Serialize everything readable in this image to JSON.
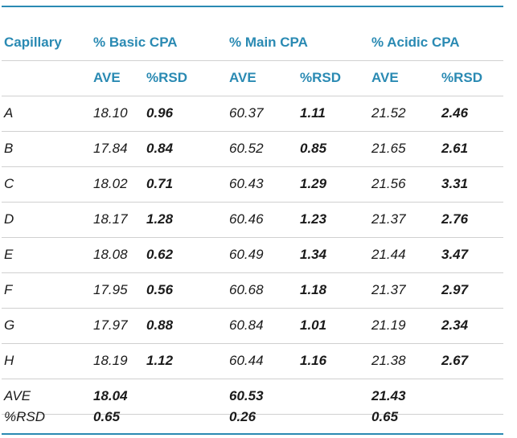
{
  "header": {
    "capillary": "Capillary",
    "basic": "% Basic CPA",
    "main": "% Main CPA",
    "acidic": "% Acidic CPA"
  },
  "subheader": {
    "ave": "AVE",
    "rsd": "%RSD"
  },
  "rows": [
    {
      "label": "A",
      "basic_ave": "18.10",
      "basic_rsd": "0.96",
      "main_ave": "60.37",
      "main_rsd": "1.11",
      "acidic_ave": "21.52",
      "acidic_rsd": "2.46"
    },
    {
      "label": "B",
      "basic_ave": "17.84",
      "basic_rsd": "0.84",
      "main_ave": "60.52",
      "main_rsd": "0.85",
      "acidic_ave": "21.65",
      "acidic_rsd": "2.61"
    },
    {
      "label": "C",
      "basic_ave": "18.02",
      "basic_rsd": "0.71",
      "main_ave": "60.43",
      "main_rsd": "1.29",
      "acidic_ave": "21.56",
      "acidic_rsd": "3.31"
    },
    {
      "label": "D",
      "basic_ave": "18.17",
      "basic_rsd": "1.28",
      "main_ave": "60.46",
      "main_rsd": "1.23",
      "acidic_ave": "21.37",
      "acidic_rsd": "2.76"
    },
    {
      "label": "E",
      "basic_ave": "18.08",
      "basic_rsd": "0.62",
      "main_ave": "60.49",
      "main_rsd": "1.34",
      "acidic_ave": "21.44",
      "acidic_rsd": "3.47"
    },
    {
      "label": "F",
      "basic_ave": "17.95",
      "basic_rsd": "0.56",
      "main_ave": "60.68",
      "main_rsd": "1.18",
      "acidic_ave": "21.37",
      "acidic_rsd": "2.97"
    },
    {
      "label": "G",
      "basic_ave": "17.97",
      "basic_rsd": "0.88",
      "main_ave": "60.84",
      "main_rsd": "1.01",
      "acidic_ave": "21.19",
      "acidic_rsd": "2.34"
    },
    {
      "label": "H",
      "basic_ave": "18.19",
      "basic_rsd": "1.12",
      "main_ave": "60.44",
      "main_rsd": "1.16",
      "acidic_ave": "21.38",
      "acidic_rsd": "2.67"
    }
  ],
  "summary": {
    "ave_label": "AVE",
    "ave_basic": "18.04",
    "ave_main": "60.53",
    "ave_acidic": "21.43",
    "rsd_label": "%RSD",
    "rsd_basic": "0.65",
    "rsd_main": "0.26",
    "rsd_acidic": "0.65"
  },
  "colors": {
    "accent": "#2a8ab3",
    "rule": "#d0d0d0",
    "text": "#1a1a1a"
  }
}
